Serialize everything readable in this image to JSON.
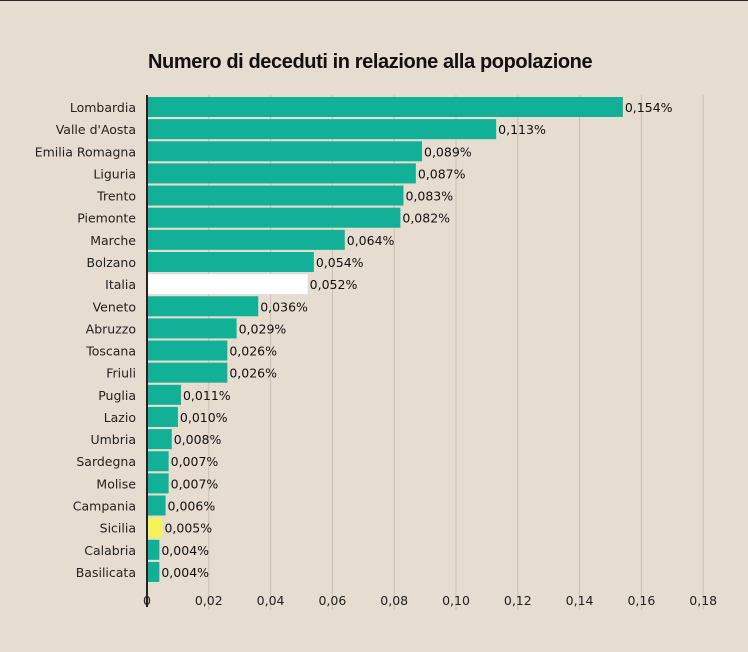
{
  "chart_data": {
    "type": "bar",
    "orientation": "horizontal",
    "title": "Numero di deceduti in relazione alla popolazione",
    "xlabel": "",
    "ylabel": "",
    "xlim": [
      0,
      0.18
    ],
    "grid": true,
    "categories": [
      "Lombardia",
      "Valle d'Aosta",
      "Emilia Romagna",
      "Liguria",
      "Trento",
      "Piemonte",
      "Marche",
      "Bolzano",
      "Italia",
      "Veneto",
      "Abruzzo",
      "Toscana",
      "Friuli",
      "Puglia",
      "Lazio",
      "Umbria",
      "Sardegna",
      "Molise",
      "Campania",
      "Sicilia",
      "Calabria",
      "Basilicata"
    ],
    "values": [
      0.154,
      0.113,
      0.089,
      0.087,
      0.083,
      0.082,
      0.064,
      0.054,
      0.052,
      0.036,
      0.029,
      0.026,
      0.026,
      0.011,
      0.01,
      0.008,
      0.007,
      0.007,
      0.006,
      0.005,
      0.004,
      0.004
    ],
    "value_labels": [
      "0,154%",
      "0,113%",
      "0,089%",
      "0,087%",
      "0,083%",
      "0,082%",
      "0,064%",
      "0,054%",
      "0,052%",
      "0,036%",
      "0,029%",
      "0,026%",
      "0,026%",
      "0,011%",
      "0,010%",
      "0,008%",
      "0,007%",
      "0,007%",
      "0,006%",
      "0,005%",
      "0,004%",
      "0,004%"
    ],
    "ticks": [
      0,
      0.02,
      0.04,
      0.06,
      0.08,
      0.1,
      0.12,
      0.14,
      0.16,
      0.18
    ],
    "tick_labels": [
      "0",
      "0,02",
      "0,04",
      "0,06",
      "0,08",
      "0,10",
      "0,12",
      "0,14",
      "0,16",
      "0,18"
    ],
    "colors": {
      "default": "#12b096",
      "highlights": {
        "Italia": "#ffffff",
        "Sicilia": "#f6f25a"
      },
      "background": "#e6dccf",
      "grid": "#c9bfb3",
      "axis": "#222222"
    }
  }
}
